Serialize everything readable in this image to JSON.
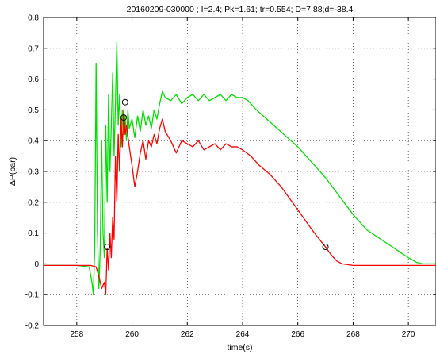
{
  "chart_data": {
    "type": "line",
    "title": "20160209-030000 ; I=2.4; Pk=1.61; tr=0.554; D=7.88;d=-38.4",
    "xlabel": "time(s)",
    "ylabel": "ΔP(bar)",
    "xlim": [
      256.8,
      271
    ],
    "ylim": [
      -0.2,
      0.8
    ],
    "xticks": [
      258,
      260,
      262,
      264,
      266,
      268,
      270
    ],
    "xtick_labels": [
      "258",
      "260",
      "262",
      "264",
      "266",
      "268",
      "270"
    ],
    "yticks": [
      -0.2,
      -0.1,
      0,
      0.1,
      0.2,
      0.3,
      0.4,
      0.5,
      0.6,
      0.7,
      0.8
    ],
    "ytick_labels": [
      "-0.2",
      "-0.1",
      "0",
      "0.1",
      "0.2",
      "0.3",
      "0.4",
      "0.5",
      "0.6",
      "0.7",
      "0.8"
    ],
    "grid": true,
    "series": [
      {
        "color": "#00e000",
        "x": [
          256.8,
          257.5,
          258.0,
          258.45,
          258.55,
          258.6,
          258.65,
          258.7,
          258.75,
          258.8,
          258.85,
          258.9,
          258.95,
          259.0,
          259.05,
          259.1,
          259.15,
          259.2,
          259.25,
          259.3,
          259.35,
          259.4,
          259.45,
          259.5,
          259.55,
          259.6,
          259.65,
          259.7,
          259.75,
          259.8,
          259.85,
          259.9,
          260.0,
          260.1,
          260.2,
          260.3,
          260.4,
          260.5,
          260.6,
          260.7,
          260.8,
          260.9,
          261.0,
          261.1,
          261.2,
          261.4,
          261.6,
          261.8,
          262.0,
          262.2,
          262.4,
          262.6,
          262.8,
          263.0,
          263.2,
          263.4,
          263.6,
          263.8,
          264.0,
          264.2,
          264.5,
          265.0,
          265.5,
          266.0,
          266.5,
          267.0,
          267.5,
          268.0,
          268.5,
          269.0,
          269.5,
          270.0,
          270.3,
          270.5,
          271.0
        ],
        "y": [
          -0.005,
          -0.005,
          -0.005,
          -0.01,
          -0.06,
          -0.1,
          0.05,
          0.65,
          0.1,
          -0.08,
          0.05,
          0.4,
          0.1,
          0.02,
          0.45,
          0.2,
          0.55,
          0.3,
          0.45,
          0.62,
          0.35,
          0.52,
          0.72,
          0.45,
          0.55,
          0.38,
          0.5,
          0.42,
          0.48,
          0.4,
          0.5,
          0.44,
          0.47,
          0.41,
          0.48,
          0.43,
          0.5,
          0.45,
          0.48,
          0.44,
          0.5,
          0.47,
          0.52,
          0.56,
          0.54,
          0.53,
          0.55,
          0.52,
          0.54,
          0.55,
          0.53,
          0.55,
          0.53,
          0.54,
          0.55,
          0.53,
          0.55,
          0.54,
          0.54,
          0.53,
          0.5,
          0.46,
          0.42,
          0.38,
          0.33,
          0.28,
          0.22,
          0.16,
          0.11,
          0.08,
          0.05,
          0.02,
          0.005,
          0.0,
          0.0
        ]
      },
      {
        "color": "#ff0000",
        "x": [
          256.8,
          258.0,
          258.5,
          258.7,
          258.8,
          258.9,
          259.0,
          259.05,
          259.1,
          259.15,
          259.2,
          259.25,
          259.3,
          259.35,
          259.4,
          259.45,
          259.5,
          259.55,
          259.6,
          259.65,
          259.7,
          259.75,
          259.8,
          259.9,
          260.0,
          260.1,
          260.2,
          260.3,
          260.4,
          260.5,
          260.6,
          260.7,
          260.8,
          260.9,
          261.0,
          261.1,
          261.2,
          261.4,
          261.6,
          261.8,
          262.0,
          262.2,
          262.4,
          262.6,
          262.8,
          263.0,
          263.2,
          263.4,
          263.6,
          263.8,
          264.0,
          264.3,
          264.6,
          265.0,
          265.4,
          265.8,
          266.2,
          266.6,
          267.0,
          267.2,
          267.4,
          267.6,
          268.0,
          268.5,
          269.0,
          270.0,
          271.0
        ],
        "y": [
          -0.005,
          -0.005,
          -0.005,
          -0.01,
          -0.04,
          -0.08,
          -0.06,
          -0.1,
          0.05,
          -0.02,
          0.1,
          0.02,
          0.15,
          0.08,
          0.35,
          0.2,
          0.42,
          0.3,
          0.47,
          0.38,
          0.5,
          0.42,
          0.45,
          0.38,
          0.32,
          0.25,
          0.3,
          0.36,
          0.4,
          0.34,
          0.4,
          0.38,
          0.42,
          0.39,
          0.44,
          0.47,
          0.43,
          0.4,
          0.36,
          0.4,
          0.39,
          0.38,
          0.4,
          0.37,
          0.38,
          0.39,
          0.37,
          0.39,
          0.38,
          0.38,
          0.37,
          0.35,
          0.32,
          0.29,
          0.25,
          0.2,
          0.15,
          0.1,
          0.055,
          0.03,
          0.01,
          0.0,
          -0.005,
          -0.005,
          -0.005,
          -0.005,
          -0.005
        ]
      }
    ],
    "markers": [
      {
        "x": 259.1,
        "y": 0.055
      },
      {
        "x": 259.7,
        "y": 0.475
      },
      {
        "x": 259.75,
        "y": 0.525
      },
      {
        "x": 267.0,
        "y": 0.055
      }
    ]
  }
}
